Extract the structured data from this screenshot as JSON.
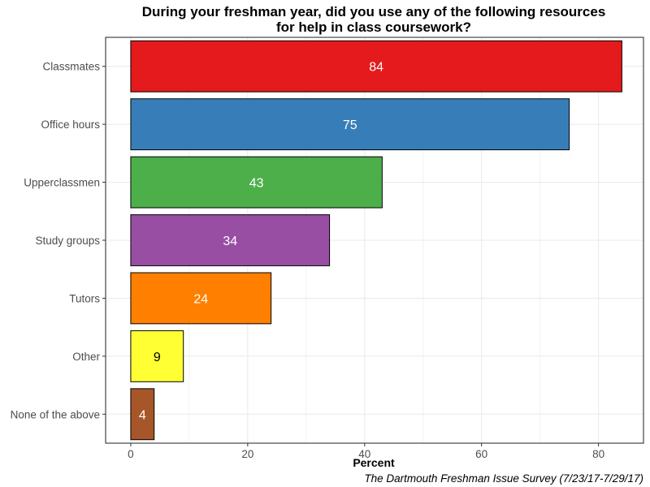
{
  "chart_data": {
    "type": "bar",
    "orientation": "horizontal",
    "title_lines": [
      "During your freshman year, did you use any of the following resources",
      "for help in class coursework?"
    ],
    "xlabel": "Percent",
    "ylabel": "",
    "caption": "The Dartmouth Freshman Issue Survey (7/23/17-7/29/17)",
    "categories": [
      "Classmates",
      "Office hours",
      "Upperclassmen",
      "Study groups",
      "Tutors",
      "Other",
      "None of the above"
    ],
    "values": [
      84,
      75,
      43,
      34,
      24,
      9,
      4
    ],
    "data_labels": [
      "84",
      "75",
      "43",
      "34",
      "24",
      "9",
      "4"
    ],
    "colors": [
      "#e41a1c",
      "#377eb8",
      "#4daf4a",
      "#984ea3",
      "#ff7f00",
      "#ffff33",
      "#a65628"
    ],
    "label_colors": [
      "#ffffff",
      "#ffffff",
      "#ffffff",
      "#ffffff",
      "#ffffff",
      "#000000",
      "#ffffff"
    ],
    "xlim": [
      -4.3,
      87.7
    ],
    "xticks": [
      0,
      20,
      40,
      60,
      80
    ],
    "xtick_labels": [
      "0",
      "20",
      "40",
      "60",
      "80"
    ],
    "grid": true,
    "legend": "none"
  }
}
